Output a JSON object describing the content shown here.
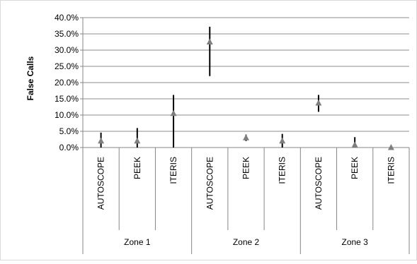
{
  "chart_data": {
    "type": "scatter",
    "ylabel": "False Calls",
    "ylim": [
      0,
      40
    ],
    "yticks": [
      "0.0%",
      "5.0%",
      "10.0%",
      "15.0%",
      "20.0%",
      "25.0%",
      "30.0%",
      "35.0%",
      "40.0%"
    ],
    "grid": "horizontal",
    "groups": [
      "Zone 1",
      "Zone 2",
      "Zone 3"
    ],
    "categories": [
      "AUTOSCOPE",
      "PEEK",
      "ITERIS",
      "AUTOSCOPE",
      "PEEK",
      "ITERIS",
      "AUTOSCOPE",
      "PEEK",
      "ITERIS"
    ],
    "series": [
      {
        "values": [
          2.0,
          2.0,
          10.5,
          32.5,
          3.0,
          2.0,
          13.7,
          0.8,
          0.0
        ],
        "error_low": [
          0.0,
          0.0,
          0.0,
          22.0,
          2.0,
          0.0,
          11.0,
          0.0,
          0.0
        ],
        "error_high": [
          4.6,
          6.0,
          16.2,
          37.2,
          4.0,
          4.2,
          16.2,
          3.2,
          0.0
        ]
      }
    ],
    "colors": {
      "marker": "#7f7f7f",
      "error_bar": "#000000",
      "grid": "#8c8c8c",
      "axis": "#868686"
    }
  }
}
